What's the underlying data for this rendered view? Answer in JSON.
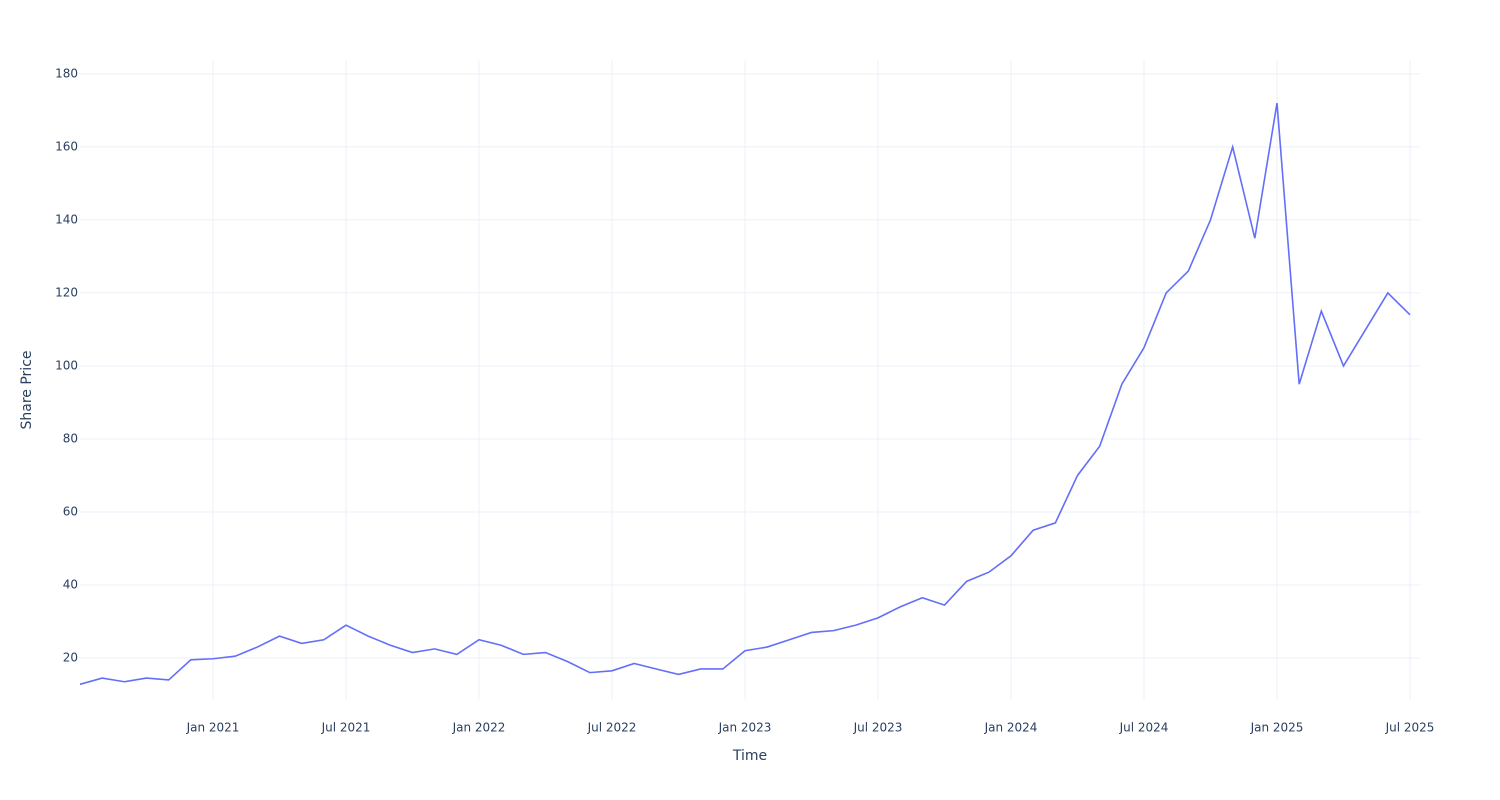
{
  "chart_data": {
    "type": "line",
    "x_label": "Time",
    "y_label": "Share Price",
    "x": [
      "2020-07",
      "2020-08",
      "2020-09",
      "2020-10",
      "2020-11",
      "2020-12",
      "2021-01",
      "2021-02",
      "2021-03",
      "2021-04",
      "2021-05",
      "2021-06",
      "2021-07",
      "2021-08",
      "2021-09",
      "2021-10",
      "2021-11",
      "2021-12",
      "2022-01",
      "2022-02",
      "2022-03",
      "2022-04",
      "2022-05",
      "2022-06",
      "2022-07",
      "2022-08",
      "2022-09",
      "2022-10",
      "2022-11",
      "2022-12",
      "2023-01",
      "2023-02",
      "2023-03",
      "2023-04",
      "2023-05",
      "2023-06",
      "2023-07",
      "2023-08",
      "2023-09",
      "2023-10",
      "2023-11",
      "2023-12",
      "2024-01",
      "2024-02",
      "2024-03",
      "2024-04",
      "2024-05",
      "2024-06",
      "2024-07",
      "2024-08",
      "2024-09",
      "2024-10",
      "2024-11",
      "2024-12",
      "2025-01",
      "2025-02",
      "2025-03",
      "2025-04",
      "2025-05",
      "2025-06",
      "2025-07"
    ],
    "series": [
      {
        "name": "Share Price",
        "color": "#636efa",
        "values": [
          12.8,
          14.5,
          13.5,
          14.5,
          14,
          19.5,
          19.8,
          20.5,
          23,
          26,
          24,
          25,
          29,
          26,
          23.5,
          21.5,
          22.5,
          21,
          25,
          23.5,
          21,
          21.5,
          19,
          16,
          16.5,
          18.5,
          17,
          15.5,
          17,
          17,
          22,
          23,
          25,
          27,
          27.5,
          29,
          31,
          34,
          36.5,
          34.5,
          41,
          43.5,
          48,
          55,
          57,
          70,
          78,
          95,
          105,
          120,
          126,
          140,
          160,
          135,
          172,
          95,
          115,
          100,
          110,
          120,
          114
        ]
      }
    ],
    "xlim": [
      "2020-07",
      "2025-07"
    ],
    "xticks": [
      {
        "value": "2021-01",
        "label": "Jan 2021"
      },
      {
        "value": "2021-07",
        "label": "Jul 2021"
      },
      {
        "value": "2022-01",
        "label": "Jan 2022"
      },
      {
        "value": "2022-07",
        "label": "Jul 2022"
      },
      {
        "value": "2023-01",
        "label": "Jan 2023"
      },
      {
        "value": "2023-07",
        "label": "Jul 2023"
      },
      {
        "value": "2024-01",
        "label": "Jan 2024"
      },
      {
        "value": "2024-07",
        "label": "Jul 2024"
      },
      {
        "value": "2025-01",
        "label": "Jan 2025"
      },
      {
        "value": "2025-07",
        "label": "Jul 2025"
      }
    ],
    "ylim": [
      8.5,
      183.8
    ],
    "yticks": [
      20,
      40,
      60,
      80,
      100,
      120,
      140,
      160,
      180
    ],
    "grid": true
  }
}
